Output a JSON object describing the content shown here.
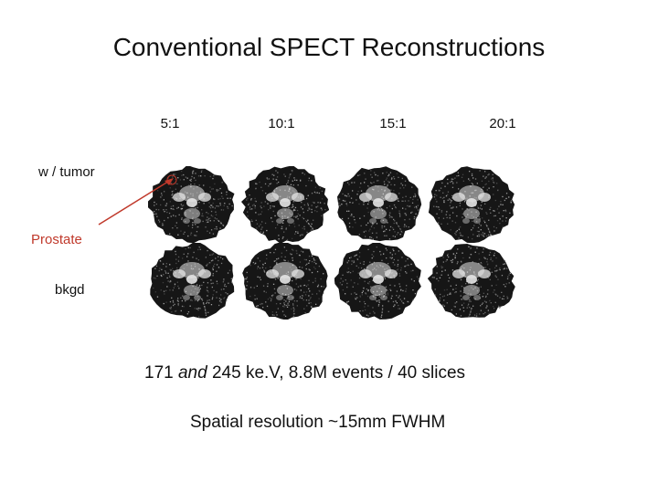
{
  "title": "Conventional SPECT Reconstructions",
  "ratios": [
    "5:1",
    "10:1",
    "15:1",
    "20:1"
  ],
  "row_labels": {
    "tumor": "w / tumor",
    "prostate": "Prostate",
    "bkgd": "bkgd"
  },
  "caption_line1": {
    "prefix": "171 ",
    "italic": "and",
    "suffix": " 245 ke.V, 8.8M events / 40 slices"
  },
  "caption_line2": "Spatial resolution ~15mm FWHM",
  "colors": {
    "prostate_label": "#c0392b",
    "arrow": "#c0392b",
    "image_background": "#111111"
  },
  "images": {
    "rows": 2,
    "cols": 4,
    "description_icon": "spect-slice-image"
  }
}
